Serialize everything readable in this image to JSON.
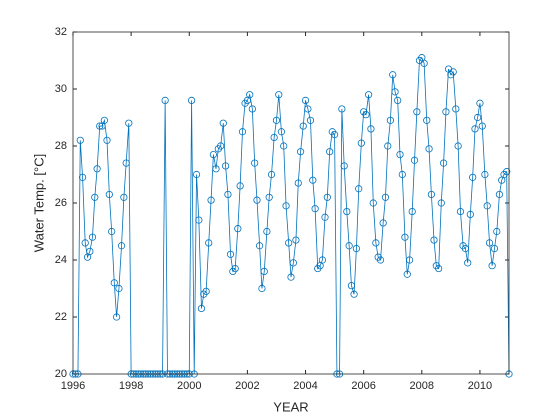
{
  "chart_data": {
    "type": "line",
    "xlabel": "YEAR",
    "ylabel": "Water Temp. [°C]",
    "xlim": [
      1996,
      2011
    ],
    "ylim": [
      20,
      32
    ],
    "xticks": [
      1996,
      1998,
      2000,
      2002,
      2004,
      2006,
      2008,
      2010
    ],
    "yticks": [
      20,
      22,
      24,
      26,
      28,
      30,
      32
    ],
    "color": "#0072bd",
    "marker": "circle",
    "x": [
      1996,
      1996.08,
      1996.17,
      1996.25,
      1996.33,
      1996.42,
      1996.5,
      1996.58,
      1996.67,
      1996.75,
      1996.83,
      1996.92,
      1997,
      1997.08,
      1997.17,
      1997.25,
      1997.33,
      1997.42,
      1997.5,
      1997.58,
      1997.67,
      1997.75,
      1997.83,
      1997.92,
      1998,
      1998.08,
      1998.17,
      1998.25,
      1998.33,
      1998.42,
      1998.5,
      1998.58,
      1998.67,
      1998.75,
      1998.83,
      1998.92,
      1999,
      1999.08,
      1999.17,
      1999.25,
      1999.33,
      1999.42,
      1999.5,
      1999.58,
      1999.67,
      1999.75,
      1999.83,
      1999.92,
      2000,
      2000.08,
      2000.17,
      2000.25,
      2000.33,
      2000.42,
      2000.5,
      2000.58,
      2000.67,
      2000.75,
      2000.83,
      2000.92,
      2001,
      2001.08,
      2001.17,
      2001.25,
      2001.33,
      2001.42,
      2001.5,
      2001.58,
      2001.67,
      2001.75,
      2001.83,
      2001.92,
      2002,
      2002.08,
      2002.17,
      2002.25,
      2002.33,
      2002.42,
      2002.5,
      2002.58,
      2002.67,
      2002.75,
      2002.83,
      2002.92,
      2003,
      2003.08,
      2003.17,
      2003.25,
      2003.33,
      2003.42,
      2003.5,
      2003.58,
      2003.67,
      2003.75,
      2003.83,
      2003.92,
      2004,
      2004.08,
      2004.17,
      2004.25,
      2004.33,
      2004.42,
      2004.5,
      2004.58,
      2004.67,
      2004.75,
      2004.83,
      2004.92,
      2005,
      2005.08,
      2005.17,
      2005.25,
      2005.33,
      2005.42,
      2005.5,
      2005.58,
      2005.67,
      2005.75,
      2005.83,
      2005.92,
      2006,
      2006.08,
      2006.17,
      2006.25,
      2006.33,
      2006.42,
      2006.5,
      2006.58,
      2006.67,
      2006.75,
      2006.83,
      2006.92,
      2007,
      2007.08,
      2007.17,
      2007.25,
      2007.33,
      2007.42,
      2007.5,
      2007.58,
      2007.67,
      2007.75,
      2007.83,
      2007.92,
      2008,
      2008.08,
      2008.17,
      2008.25,
      2008.33,
      2008.42,
      2008.5,
      2008.58,
      2008.67,
      2008.75,
      2008.83,
      2008.92,
      2009,
      2009.08,
      2009.17,
      2009.25,
      2009.33,
      2009.42,
      2009.5,
      2009.58,
      2009.67,
      2009.75,
      2009.83,
      2009.92,
      2010,
      2010.08,
      2010.17,
      2010.25,
      2010.33,
      2010.42,
      2010.5,
      2010.58,
      2010.67,
      2010.75,
      2010.83,
      2010.92,
      2011
    ],
    "values": [
      20,
      20,
      20,
      28.2,
      26.9,
      24.6,
      24.1,
      24.3,
      24.8,
      26.2,
      27.2,
      28.7,
      28.7,
      28.9,
      28.2,
      26.3,
      25.0,
      23.2,
      22.0,
      23.0,
      24.5,
      26.2,
      27.4,
      28.8,
      20,
      20,
      20,
      20,
      20,
      20,
      20,
      20,
      20,
      20,
      20,
      20,
      20,
      20,
      29.6,
      20,
      20,
      20,
      20,
      20,
      20,
      20,
      20,
      20,
      20,
      29.6,
      20,
      27.0,
      25.4,
      22.3,
      22.8,
      22.9,
      24.6,
      26.1,
      27.7,
      27.2,
      27.9,
      28.0,
      28.8,
      27.3,
      26.3,
      24.2,
      23.6,
      23.7,
      25.1,
      26.6,
      28.5,
      29.5,
      29.6,
      29.8,
      29.3,
      27.4,
      26.1,
      24.5,
      23.0,
      23.6,
      25.0,
      26.2,
      27.0,
      28.3,
      28.9,
      29.8,
      28.5,
      28.0,
      25.9,
      24.6,
      23.4,
      23.9,
      24.7,
      26.7,
      27.8,
      28.7,
      29.6,
      29.3,
      28.9,
      26.8,
      25.8,
      23.7,
      23.8,
      24.0,
      25.5,
      26.2,
      27.8,
      28.5,
      28.4,
      20,
      20,
      29.3,
      27.3,
      25.7,
      24.5,
      23.1,
      22.8,
      24.4,
      26.5,
      28.1,
      29.2,
      29.1,
      29.8,
      28.6,
      26.0,
      24.6,
      24.1,
      24.0,
      25.3,
      26.2,
      28.0,
      28.9,
      30.5,
      29.9,
      29.6,
      27.7,
      27.0,
      24.8,
      23.5,
      24.0,
      25.7,
      27.5,
      29.2,
      31.0,
      31.1,
      30.9,
      28.9,
      27.9,
      26.3,
      24.7,
      23.8,
      23.7,
      26.0,
      27.4,
      29.2,
      30.7,
      30.5,
      30.6,
      29.3,
      28.0,
      25.7,
      24.5,
      24.4,
      23.9,
      25.6,
      26.9,
      28.6,
      29.0,
      29.5,
      28.7,
      27.0,
      25.9,
      24.6,
      23.8,
      24.4,
      25.0,
      26.3,
      26.8,
      27.0,
      27.1,
      20
    ]
  }
}
